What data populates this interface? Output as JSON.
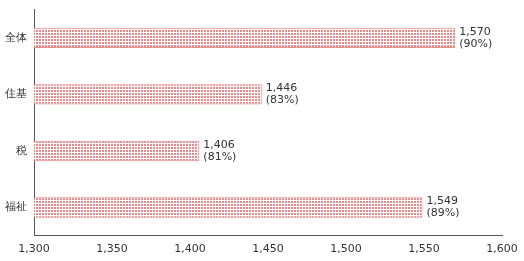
{
  "chart_data": {
    "type": "bar",
    "orientation": "horizontal",
    "categories": [
      "全体",
      "住基",
      "税",
      "福祉"
    ],
    "values": [
      1570,
      1446,
      1406,
      1549
    ],
    "value_labels": [
      [
        "1,570",
        "(90%)"
      ],
      [
        "1,446",
        "(83%)"
      ],
      [
        "1,406",
        "(81%)"
      ],
      [
        "1,549",
        "(89%)"
      ]
    ],
    "data_labels": true,
    "color": "#e88a8a",
    "xlim": [
      1300,
      1600
    ],
    "xticks": [
      {
        "value": 1300,
        "label": "1,300"
      },
      {
        "value": 1350,
        "label": "1,350"
      },
      {
        "value": 1400,
        "label": "1,400"
      },
      {
        "value": 1450,
        "label": "1,450"
      },
      {
        "value": 1500,
        "label": "1,500"
      },
      {
        "value": 1550,
        "label": "1,550"
      },
      {
        "value": 1600,
        "label": "1,600"
      }
    ],
    "grid": false
  }
}
